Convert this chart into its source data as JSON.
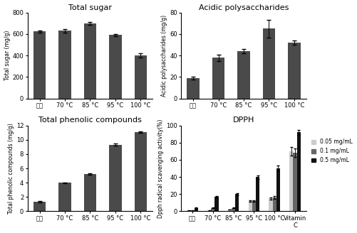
{
  "categories": [
    "수살",
    "70 °C",
    "85 °C",
    "95 °C",
    "100 °C"
  ],
  "dpph_categories": [
    "수살",
    "70 °C",
    "85 °C",
    "95 °C",
    "100 °C",
    "Vitamin\nC"
  ],
  "total_sugar_values": [
    625,
    630,
    700,
    590,
    400
  ],
  "total_sugar_errors": [
    10,
    15,
    12,
    12,
    18
  ],
  "total_sugar_ylabel": "Total sugar (mg/g)",
  "total_sugar_title": "Total sugar",
  "total_sugar_ylim": [
    0,
    800
  ],
  "total_sugar_yticks": [
    0,
    200,
    400,
    600,
    800
  ],
  "acidic_poly_values": [
    19,
    38,
    44,
    65,
    52
  ],
  "acidic_poly_errors": [
    1.5,
    3,
    2,
    8,
    2
  ],
  "acidic_poly_ylabel": "Acidic polysaccharides (mg/g)",
  "acidic_poly_title": "Acidic polysaccharides",
  "acidic_poly_ylim": [
    0,
    80
  ],
  "acidic_poly_yticks": [
    0,
    20,
    40,
    60,
    80
  ],
  "phenolic_values": [
    1.3,
    4.0,
    5.2,
    9.3,
    11.1
  ],
  "phenolic_errors": [
    0.1,
    0.05,
    0.1,
    0.15,
    0.1
  ],
  "phenolic_ylabel": "Total phenolic compounds (mg/g)",
  "phenolic_title": "Total phenolic compounds",
  "phenolic_ylim": [
    0,
    12
  ],
  "phenolic_yticks": [
    0,
    2,
    4,
    6,
    8,
    10,
    12
  ],
  "dpph_005": [
    1,
    1,
    2,
    12,
    15,
    70
  ],
  "dpph_01": [
    1,
    4,
    4,
    12,
    16,
    68
  ],
  "dpph_05": [
    4,
    17,
    20,
    40,
    50,
    92
  ],
  "dpph_errors_005": [
    0.3,
    0.3,
    0.3,
    1,
    1.5,
    5
  ],
  "dpph_errors_01": [
    0.3,
    0.5,
    0.5,
    1,
    1.5,
    5
  ],
  "dpph_errors_05": [
    0.3,
    1,
    1,
    2,
    3,
    3
  ],
  "dpph_ylabel": "Dpph radical scavenging activity(%)",
  "dpph_title": "DPPH",
  "dpph_ylim": [
    0,
    100
  ],
  "dpph_yticks": [
    0,
    20,
    40,
    60,
    80,
    100
  ],
  "bar_color": "#4a4a4a",
  "dpph_color_light": "#cccccc",
  "dpph_color_mid": "#666666",
  "dpph_color_dark": "#111111",
  "legend_labels": [
    "0.05 mg/mL",
    "0.1 mg/mL",
    "0.5 mg/mL"
  ],
  "title_fontsize": 8,
  "label_fontsize": 5.5,
  "tick_fontsize": 6,
  "legend_fontsize": 5.5
}
